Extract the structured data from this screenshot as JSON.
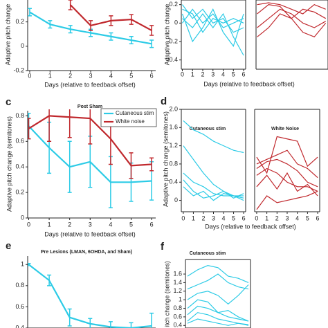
{
  "chart_data": [
    {
      "type": "line",
      "ylabel": "Adaptive pitch change",
      "xlabel": "Days (relative to feedback offset)",
      "x": [
        0,
        1,
        2,
        3,
        4,
        5,
        6
      ],
      "xlim": [
        -0.1,
        6.2
      ],
      "xticks": [
        0,
        1,
        2,
        3,
        4,
        5,
        6
      ],
      "ylim": [
        -0.2,
        0.38
      ],
      "yticks": [
        -0.2,
        0,
        0.2
      ],
      "series": [
        {
          "color": "#2ccbe6",
          "values": [
            0.28,
            0.18,
            0.14,
            0.11,
            0.08,
            0.05,
            0.02
          ],
          "errors": [
            0.03,
            0.03,
            0.03,
            0.03,
            0.03,
            0.03,
            0.03
          ]
        },
        {
          "color": "#c0282d",
          "values": [
            null,
            null,
            0.34,
            0.17,
            0.21,
            0.22,
            0.13
          ],
          "errors": [
            null,
            null,
            0.04,
            0.04,
            0.04,
            0.04,
            0.04
          ]
        }
      ]
    },
    {
      "type": "line",
      "xlabel": "Days (relative to feedback offset)",
      "ylabel": "Adaptive pitch change",
      "x": [
        0,
        1,
        2,
        3,
        4,
        5,
        6
      ],
      "xlim": [
        -0.1,
        6.2
      ],
      "xticks": [
        0,
        1,
        2,
        3,
        4,
        5,
        6
      ],
      "ylim": [
        -0.5,
        0.25
      ],
      "yticks": [
        -0.4,
        -0.2,
        0,
        0.2
      ],
      "series": [
        {
          "color": "#2ccbe6",
          "values": [
            0.2,
            0.05,
            0.15,
            0.0,
            0.05,
            -0.1,
            -0.05
          ]
        },
        {
          "color": "#2ccbe6",
          "values": [
            0.15,
            0.1,
            -0.1,
            0.05,
            0.0,
            0.05,
            0.0
          ]
        },
        {
          "color": "#2ccbe6",
          "values": [
            0.05,
            -0.05,
            0.1,
            -0.05,
            0.1,
            -0.15,
            -0.35
          ]
        },
        {
          "color": "#2ccbe6",
          "values": [
            0.0,
            0.15,
            0.0,
            0.1,
            -0.05,
            0.0,
            0.05
          ]
        },
        {
          "color": "#2ccbe6",
          "values": [
            0.1,
            -0.2,
            -0.05,
            0.15,
            -0.1,
            -0.25,
            0.1
          ]
        }
      ]
    },
    {
      "type": "line",
      "x": [
        0,
        1,
        2,
        3,
        4,
        5,
        6
      ],
      "xlim": [
        -0.1,
        6.2
      ],
      "ylim": [
        -0.5,
        0.25
      ],
      "series": [
        {
          "color": "#c0282d",
          "values": [
            0.2,
            0.22,
            0.2,
            0.15,
            0.1,
            0.2,
            0.15
          ]
        },
        {
          "color": "#c0282d",
          "values": [
            0.1,
            0.2,
            0.18,
            0.05,
            0.15,
            0.12,
            0.05
          ]
        },
        {
          "color": "#c0282d",
          "values": [
            -0.05,
            0.05,
            0.15,
            0.1,
            0.0,
            -0.05,
            0.02
          ]
        },
        {
          "color": "#c0282d",
          "values": [
            -0.15,
            -0.05,
            0.1,
            0.05,
            -0.1,
            -0.15,
            0.0
          ]
        }
      ]
    },
    {
      "type": "line",
      "letter": "c",
      "title": "Post Sham",
      "ylabel": "Adaptive pitch change (semitones)",
      "xlabel": "Days (relative to feedback offset)",
      "x": [
        0,
        1,
        2,
        3,
        4,
        5,
        6
      ],
      "xlim": [
        -0.05,
        6.2
      ],
      "xticks": [
        0,
        1,
        2,
        3,
        4,
        5,
        6
      ],
      "ylim": [
        0,
        0.84
      ],
      "yticks": [
        0,
        0.2,
        0.4,
        0.6,
        0.8
      ],
      "series": [
        {
          "name": "Cutaneous stim",
          "color": "#2ccbe6",
          "values": [
            0.72,
            0.55,
            0.4,
            0.44,
            0.28,
            0.28,
            0.29
          ],
          "errors": [
            0.1,
            0.2,
            0.2,
            0.2,
            0.2,
            0.15,
            0.15
          ]
        },
        {
          "name": "White noise",
          "color": "#c0282d",
          "values": [
            0.7,
            0.8,
            0.79,
            0.78,
            0.62,
            0.41,
            0.42
          ],
          "errors": [
            0.08,
            0.2,
            0.16,
            0.2,
            0.2,
            0.1,
            0.05
          ]
        }
      ]
    },
    {
      "type": "line",
      "letter": "d",
      "title": "Cutaneous stim",
      "ylabel": "Adaptive pitch change (semitones)",
      "xlabel": "Days (relative to feedback offset)",
      "x": [
        0,
        1,
        2,
        3,
        4,
        5,
        6
      ],
      "xlim": [
        -0.2,
        6.2
      ],
      "xticks": [
        0,
        1,
        2,
        3,
        4,
        5,
        6
      ],
      "ylim": [
        -0.25,
        2.0
      ],
      "yticks": [
        0,
        0.4,
        0.8,
        1.2,
        1.6,
        {
          "value": 2,
          "label": "2.0"
        }
      ],
      "series": [
        {
          "color": "#2ccbe6",
          "values": [
            1.75,
            1.55,
            1.45,
            1.3,
            1.2,
            1.1,
            1.05
          ]
        },
        {
          "color": "#2ccbe6",
          "values": [
            1.2,
            0.9,
            0.6,
            0.35,
            0.2,
            0.1,
            0.1
          ]
        },
        {
          "color": "#2ccbe6",
          "values": [
            0.6,
            0.4,
            0.3,
            0.15,
            0.1,
            0.1,
            0.05
          ]
        },
        {
          "color": "#2ccbe6",
          "values": [
            0.45,
            0.2,
            0.05,
            0.1,
            0.2,
            0.05,
            0.15
          ]
        },
        {
          "color": "#2ccbe6",
          "values": [
            0.3,
            0.1,
            0.2,
            0.0,
            0.15,
            0.1,
            0.0
          ]
        }
      ]
    },
    {
      "type": "line",
      "title": "White Noise",
      "x": [
        0,
        1,
        2,
        3,
        4,
        5,
        6
      ],
      "xlim": [
        -0.2,
        6.2
      ],
      "xticks": [
        0,
        1,
        2,
        3,
        4,
        5,
        6
      ],
      "ylim": [
        -0.25,
        2.0
      ],
      "series": [
        {
          "color": "#c0282d",
          "values": [
            0.95,
            0.6,
            1.4,
            1.35,
            1.3,
            0.75,
            0.95
          ]
        },
        {
          "color": "#c0282d",
          "values": [
            0.8,
            0.9,
            1.0,
            1.1,
            0.8,
            0.7,
            0.5
          ]
        },
        {
          "color": "#c0282d",
          "values": [
            0.7,
            0.85,
            0.9,
            0.8,
            0.65,
            0.4,
            0.3
          ]
        },
        {
          "color": "#c0282d",
          "values": [
            0.55,
            0.7,
            0.6,
            0.4,
            0.3,
            0.3,
            0.2
          ]
        },
        {
          "color": "#c0282d",
          "values": [
            0.3,
            0.55,
            0.25,
            0.6,
            0.2,
            0.35,
            0.1
          ]
        },
        {
          "color": "#c0282d",
          "values": [
            -0.2,
            0.1,
            -0.05,
            0.0,
            0.05,
            0.1,
            0.2
          ]
        }
      ]
    },
    {
      "type": "line",
      "letter": "e",
      "title": "Pre Lesions (LMAN, 6OHDA, and Sham)",
      "x": [
        0,
        1,
        2,
        3,
        4,
        5,
        6
      ],
      "xlim": [
        -0.05,
        6.2
      ],
      "ylim": [
        0.4,
        1.08
      ],
      "yticks": [
        0.4,
        0.6,
        0.8,
        1
      ],
      "series": [
        {
          "color": "#2ccbe6",
          "values": [
            1.0,
            0.85,
            0.5,
            0.44,
            0.41,
            0.4,
            0.42
          ],
          "errors": [
            0.01,
            0.05,
            0.08,
            0.05,
            0.05,
            0.05,
            0.12
          ]
        }
      ]
    },
    {
      "type": "line",
      "letter": "f",
      "title": "Cutaneous stim",
      "ylabel": "itch change (semitones)",
      "x": [
        0,
        1,
        2,
        3,
        4,
        5,
        6
      ],
      "xlim": [
        -0.2,
        6.2
      ],
      "ylim": [
        0.34,
        1.94
      ],
      "yticks": [
        0.4,
        0.6,
        0.8,
        1,
        1.2,
        1.4,
        1.6
      ],
      "series": [
        {
          "color": "#2ccbe6",
          "values": [
            1.55,
            1.7,
            1.8,
            1.75,
            1.55,
            1.5,
            1.4
          ]
        },
        {
          "color": "#2ccbe6",
          "values": [
            1.25,
            1.35,
            1.45,
            1.6,
            1.4,
            1.3,
            1.25
          ]
        },
        {
          "color": "#2ccbe6",
          "values": [
            1.0,
            1.15,
            1.2,
            1.1,
            0.9,
            1.1,
            1.35
          ]
        },
        {
          "color": "#2ccbe6",
          "values": [
            0.8,
            1.0,
            0.95,
            0.7,
            0.75,
            0.6,
            0.5
          ]
        },
        {
          "color": "#2ccbe6",
          "values": [
            0.65,
            0.85,
            0.8,
            0.7,
            0.6,
            0.55,
            0.5
          ]
        },
        {
          "color": "#2ccbe6",
          "values": [
            0.5,
            0.7,
            0.65,
            0.55,
            0.5,
            0.45,
            0.4
          ]
        },
        {
          "color": "#2ccbe6",
          "values": [
            0.45,
            0.55,
            0.5,
            0.45,
            0.4,
            0.45,
            0.42
          ]
        }
      ]
    }
  ]
}
